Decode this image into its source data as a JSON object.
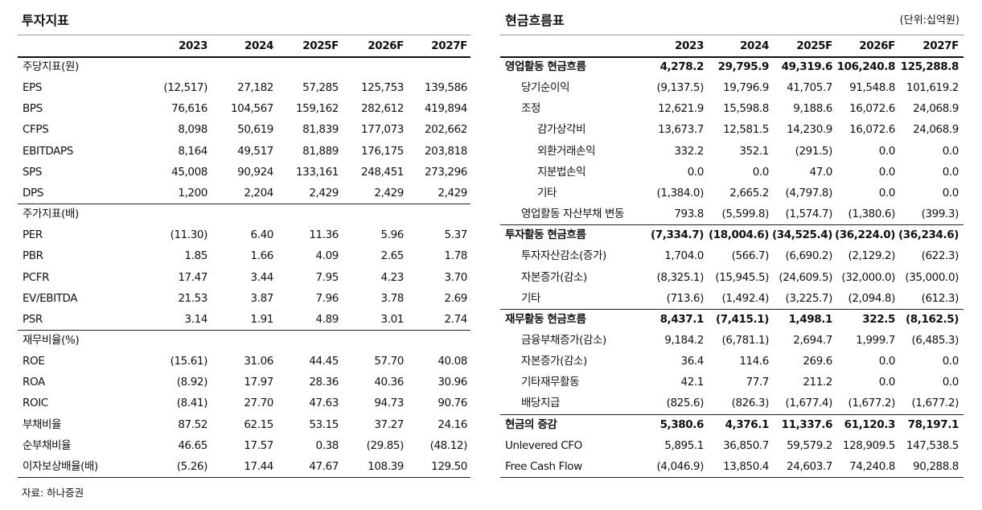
{
  "source": "자료: 하나증권",
  "left": {
    "title": "투자지표",
    "columns": [
      "2023",
      "2024",
      "2025F",
      "2026F",
      "2027F"
    ],
    "sections": [
      {
        "header": "주당지표(원)",
        "rows": [
          {
            "label": "EPS",
            "values": [
              "(12,517)",
              "27,182",
              "57,285",
              "125,753",
              "139,586"
            ]
          },
          {
            "label": "BPS",
            "values": [
              "76,616",
              "104,567",
              "159,162",
              "282,612",
              "419,894"
            ]
          },
          {
            "label": "CFPS",
            "values": [
              "8,098",
              "50,619",
              "81,839",
              "177,073",
              "202,662"
            ]
          },
          {
            "label": "EBITDAPS",
            "values": [
              "8,164",
              "49,517",
              "81,889",
              "176,175",
              "203,818"
            ]
          },
          {
            "label": "SPS",
            "values": [
              "45,008",
              "90,924",
              "133,161",
              "248,451",
              "273,296"
            ]
          },
          {
            "label": "DPS",
            "values": [
              "1,200",
              "2,204",
              "2,429",
              "2,429",
              "2,429"
            ]
          }
        ]
      },
      {
        "header": "주가지표(배)",
        "rows": [
          {
            "label": "PER",
            "values": [
              "(11.30)",
              "6.40",
              "11.36",
              "5.96",
              "5.37"
            ]
          },
          {
            "label": "PBR",
            "values": [
              "1.85",
              "1.66",
              "4.09",
              "2.65",
              "1.78"
            ]
          },
          {
            "label": "PCFR",
            "values": [
              "17.47",
              "3.44",
              "7.95",
              "4.23",
              "3.70"
            ]
          },
          {
            "label": "EV/EBITDA",
            "values": [
              "21.53",
              "3.87",
              "7.96",
              "3.78",
              "2.69"
            ]
          },
          {
            "label": "PSR",
            "values": [
              "3.14",
              "1.91",
              "4.89",
              "3.01",
              "2.74"
            ]
          }
        ]
      },
      {
        "header": "재무비율(%)",
        "rows": [
          {
            "label": "ROE",
            "values": [
              "(15.61)",
              "31.06",
              "44.45",
              "57.70",
              "40.08"
            ]
          },
          {
            "label": "ROA",
            "values": [
              "(8.92)",
              "17.97",
              "28.36",
              "40.36",
              "30.96"
            ]
          },
          {
            "label": "ROIC",
            "values": [
              "(8.41)",
              "27.70",
              "47.63",
              "94.73",
              "90.76"
            ]
          },
          {
            "label": "부채비율",
            "values": [
              "87.52",
              "62.15",
              "53.15",
              "37.27",
              "24.16"
            ]
          },
          {
            "label": "순부채비율",
            "values": [
              "46.65",
              "17.57",
              "0.38",
              "(29.85)",
              "(48.12)"
            ]
          },
          {
            "label": "이자보상배율(배)",
            "values": [
              "(5.26)",
              "17.44",
              "47.67",
              "108.39",
              "129.50"
            ]
          }
        ]
      }
    ]
  },
  "right": {
    "title": "현금흐름표",
    "unit": "(단위:십억원)",
    "columns": [
      "2023",
      "2024",
      "2025F",
      "2026F",
      "2027F"
    ],
    "groups": [
      {
        "label": "영업활동 현금흐름",
        "values": [
          "4,278.2",
          "29,795.9",
          "49,319.6",
          "106,240.8",
          "125,288.8"
        ],
        "items": [
          {
            "label": "당기순이익",
            "values": [
              "(9,137.5)",
              "19,796.9",
              "41,705.7",
              "91,548.8",
              "101,619.2"
            ]
          },
          {
            "label": "조정",
            "values": [
              "12,621.9",
              "15,598.8",
              "9,188.6",
              "16,072.6",
              "24,068.9"
            ],
            "items": [
              {
                "label": "감가상각비",
                "values": [
                  "13,673.7",
                  "12,581.5",
                  "14,230.9",
                  "16,072.6",
                  "24,068.9"
                ]
              },
              {
                "label": "외환거래손익",
                "values": [
                  "332.2",
                  "352.1",
                  "(291.5)",
                  "0.0",
                  "0.0"
                ]
              },
              {
                "label": "지분법손익",
                "values": [
                  "0.0",
                  "0.0",
                  "47.0",
                  "0.0",
                  "0.0"
                ]
              },
              {
                "label": "기타",
                "values": [
                  "(1,384.0)",
                  "2,665.2",
                  "(4,797.8)",
                  "0.0",
                  "0.0"
                ]
              }
            ]
          },
          {
            "label": "영업활동 자산부채 변동",
            "values": [
              "793.8",
              "(5,599.8)",
              "(1,574.7)",
              "(1,380.6)",
              "(399.3)"
            ]
          }
        ]
      },
      {
        "label": "투자활동 현금흐름",
        "values": [
          "(7,334.7)",
          "(18,004.6)",
          "(34,525.4)",
          "(36,224.0)",
          "(36,234.6)"
        ],
        "items": [
          {
            "label": "투자자산감소(증가)",
            "values": [
              "1,704.0",
              "(566.7)",
              "(6,690.2)",
              "(2,129.2)",
              "(622.3)"
            ]
          },
          {
            "label": "자본증가(감소)",
            "values": [
              "(8,325.1)",
              "(15,945.5)",
              "(24,609.5)",
              "(32,000.0)",
              "(35,000.0)"
            ]
          },
          {
            "label": "기타",
            "values": [
              "(713.6)",
              "(1,492.4)",
              "(3,225.7)",
              "(2,094.8)",
              "(612.3)"
            ]
          }
        ]
      },
      {
        "label": "재무활동 현금흐름",
        "values": [
          "8,437.1",
          "(7,415.1)",
          "1,498.1",
          "322.5",
          "(8,162.5)"
        ],
        "items": [
          {
            "label": "금융부채증가(감소)",
            "values": [
              "9,184.2",
              "(6,781.1)",
              "2,694.7",
              "1,999.7",
              "(6,485.3)"
            ]
          },
          {
            "label": "자본증가(감소)",
            "values": [
              "36.4",
              "114.6",
              "269.6",
              "0.0",
              "0.0"
            ]
          },
          {
            "label": "기타재무활동",
            "values": [
              "42.1",
              "77.7",
              "211.2",
              "0.0",
              "0.0"
            ]
          },
          {
            "label": "배당지급",
            "values": [
              "(825.6)",
              "(826.3)",
              "(1,677.4)",
              "(1,677.2)",
              "(1,677.2)"
            ]
          }
        ]
      },
      {
        "label": "현금의 증감",
        "values": [
          "5,380.6",
          "4,376.1",
          "11,337.6",
          "61,120.3",
          "78,197.1"
        ]
      }
    ],
    "footer_rows": [
      {
        "label": "Unlevered CFO",
        "values": [
          "5,895.1",
          "36,850.7",
          "59,579.2",
          "128,909.5",
          "147,538.5"
        ]
      },
      {
        "label": "Free Cash Flow",
        "values": [
          "(4,046.9)",
          "13,850.4",
          "24,603.7",
          "74,240.8",
          "90,288.8"
        ]
      }
    ]
  }
}
